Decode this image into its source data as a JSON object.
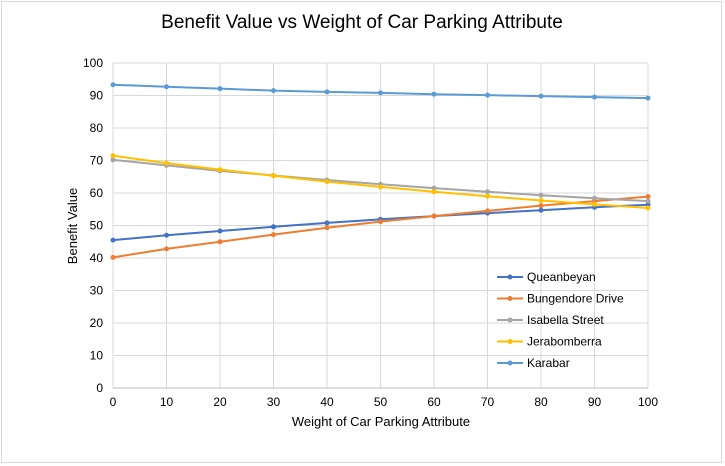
{
  "chart_data": {
    "type": "line",
    "title": "Benefit Value vs Weight of Car Parking Attribute",
    "xlabel": "Weight of Car Parking Attribute",
    "ylabel": "Benefit Value",
    "x": [
      0,
      10,
      20,
      30,
      40,
      50,
      60,
      70,
      80,
      90,
      100
    ],
    "xlim": [
      0,
      100
    ],
    "ylim": [
      0,
      100
    ],
    "xticks": [
      "0",
      "10",
      "20",
      "30",
      "40",
      "50",
      "60",
      "70",
      "80",
      "90",
      "100"
    ],
    "yticks": [
      "0",
      "10",
      "20",
      "30",
      "40",
      "50",
      "60",
      "70",
      "80",
      "90",
      "100"
    ],
    "grid": true,
    "legend_position": "right",
    "series": [
      {
        "name": "Queanbeyan",
        "color": "#4472c4",
        "values": [
          45.5,
          47.0,
          48.3,
          49.6,
          50.8,
          51.9,
          52.9,
          53.8,
          54.7,
          55.6,
          56.4
        ]
      },
      {
        "name": "Bungendore Drive",
        "color": "#ed7d31",
        "values": [
          40.2,
          42.8,
          45.0,
          47.2,
          49.3,
          51.2,
          52.9,
          54.5,
          56.1,
          57.5,
          58.9
        ]
      },
      {
        "name": "Isabella Street",
        "color": "#a5a5a5",
        "values": [
          70.2,
          68.5,
          66.8,
          65.4,
          64.0,
          62.7,
          61.5,
          60.4,
          59.3,
          58.4,
          57.5
        ]
      },
      {
        "name": "Jerabomberra",
        "color": "#ffc000",
        "values": [
          71.5,
          69.2,
          67.2,
          65.3,
          63.5,
          61.9,
          60.4,
          59.0,
          57.7,
          56.5,
          55.4
        ]
      },
      {
        "name": "Karabar",
        "color": "#5b9bd5",
        "values": [
          93.3,
          92.7,
          92.1,
          91.5,
          91.1,
          90.8,
          90.4,
          90.1,
          89.8,
          89.5,
          89.2
        ]
      }
    ]
  }
}
